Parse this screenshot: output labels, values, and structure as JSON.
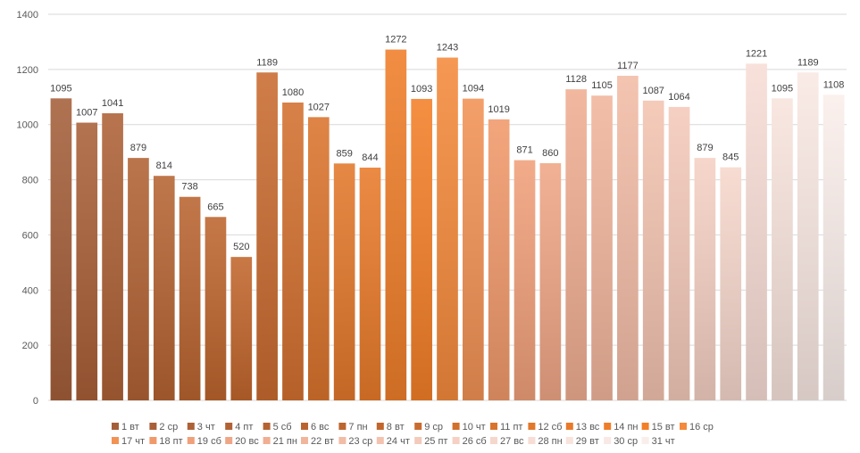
{
  "chart_data": {
    "type": "bar",
    "title": "",
    "xlabel": "",
    "ylabel": "",
    "ylim": [
      0,
      1400
    ],
    "yticks": [
      0,
      200,
      400,
      600,
      800,
      1000,
      1200,
      1400
    ],
    "grid": true,
    "legend_position": "bottom",
    "categories": [
      "1 вт",
      "2 ср",
      "3 чт",
      "4 пт",
      "5 сб",
      "6 вс",
      "7 пн",
      "8 вт",
      "9 ср",
      "10 чт",
      "11 пт",
      "12 сб",
      "13 вс",
      "14 пн",
      "15 вт",
      "16 ср",
      "17 чт",
      "18 пт",
      "19 сб",
      "20 вс",
      "21 пн",
      "22 вт",
      "23 ср",
      "24 чт",
      "25 пт",
      "26 сб",
      "27 вс",
      "28 пн",
      "29 вт",
      "30 ср",
      "31 чт"
    ],
    "values": [
      1095,
      1007,
      1041,
      879,
      814,
      738,
      665,
      520,
      1189,
      1080,
      1027,
      859,
      844,
      1272,
      1093,
      1243,
      1094,
      1019,
      871,
      860,
      1128,
      1105,
      1177,
      1087,
      1064,
      879,
      845,
      1221,
      1095,
      1189,
      1108
    ],
    "colors": [
      "#A45F3A",
      "#A95F38",
      "#AD6136",
      "#B16234",
      "#B56332",
      "#B96430",
      "#BD652E",
      "#C1662C",
      "#C96B30",
      "#D2702F",
      "#DA742D",
      "#E2782B",
      "#E87A2A",
      "#EF7E2A",
      "#F37F28",
      "#F48A3C",
      "#F29255",
      "#F1996A",
      "#F0A07A",
      "#EFA686",
      "#F0AE92",
      "#F1B59C",
      "#F2BCA6",
      "#F3C3B0",
      "#F4CABA",
      "#F5D0C3",
      "#F6D7CC",
      "#F7DDD5",
      "#F8E3DD",
      "#F9E8E3",
      "#FAEEEA"
    ]
  }
}
